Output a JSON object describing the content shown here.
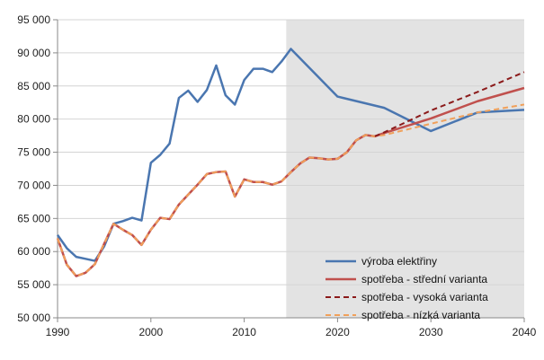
{
  "chart_data": {
    "type": "line",
    "title": "",
    "xlabel": "",
    "ylabel": "",
    "xlim": [
      1990,
      2040
    ],
    "ylim": [
      50000,
      95000
    ],
    "x_ticks": [
      1990,
      2000,
      2010,
      2020,
      2030,
      2040
    ],
    "x_tick_labels": [
      "1990",
      "2000",
      "2010",
      "2020",
      "2030",
      "2040"
    ],
    "y_ticks": [
      50000,
      55000,
      60000,
      65000,
      70000,
      75000,
      80000,
      85000,
      90000,
      95000
    ],
    "y_tick_labels": [
      "50 000",
      "55 000",
      "60 000",
      "65 000",
      "70 000",
      "75 000",
      "80 000",
      "85 000",
      "90 000",
      "95 000"
    ],
    "grid": "horizontal",
    "shaded_region": {
      "x_start": 2014.5,
      "x_end": 2040,
      "color": "#e3e3e3"
    },
    "legend_position": "bottom-right",
    "series": [
      {
        "name": "výroba elektřiny",
        "color": "#4a76b0",
        "dash": "solid",
        "points": [
          [
            1990,
            62500
          ],
          [
            1991,
            60500
          ],
          [
            1992,
            59200
          ],
          [
            1993,
            58900
          ],
          [
            1994,
            58600
          ],
          [
            1995,
            60800
          ],
          [
            1996,
            64200
          ],
          [
            1997,
            64600
          ],
          [
            1998,
            65100
          ],
          [
            1999,
            64700
          ],
          [
            2000,
            73400
          ],
          [
            2001,
            74600
          ],
          [
            2002,
            76300
          ],
          [
            2003,
            83200
          ],
          [
            2004,
            84300
          ],
          [
            2005,
            82600
          ],
          [
            2006,
            84400
          ],
          [
            2007,
            88100
          ],
          [
            2008,
            83600
          ],
          [
            2009,
            82200
          ],
          [
            2010,
            85900
          ],
          [
            2011,
            87600
          ],
          [
            2012,
            87600
          ],
          [
            2013,
            87100
          ],
          [
            2014,
            88700
          ],
          [
            2015,
            90600
          ],
          [
            2020,
            83400
          ],
          [
            2025,
            81700
          ],
          [
            2030,
            78200
          ],
          [
            2035,
            81000
          ],
          [
            2040,
            81400
          ]
        ]
      },
      {
        "name": "spotřeba - střední varianta",
        "color": "#c0504d",
        "dash": "solid",
        "points": [
          [
            1990,
            62000
          ],
          [
            1991,
            58000
          ],
          [
            1992,
            56300
          ],
          [
            1993,
            56800
          ],
          [
            1994,
            58100
          ],
          [
            1995,
            61200
          ],
          [
            1996,
            64200
          ],
          [
            1997,
            63300
          ],
          [
            1998,
            62500
          ],
          [
            1999,
            61000
          ],
          [
            2000,
            63300
          ],
          [
            2001,
            65100
          ],
          [
            2002,
            64900
          ],
          [
            2003,
            67100
          ],
          [
            2004,
            68600
          ],
          [
            2005,
            70100
          ],
          [
            2006,
            71700
          ],
          [
            2007,
            72000
          ],
          [
            2008,
            72100
          ],
          [
            2009,
            68300
          ],
          [
            2010,
            70900
          ],
          [
            2011,
            70500
          ],
          [
            2012,
            70500
          ],
          [
            2013,
            70100
          ],
          [
            2014,
            70600
          ],
          [
            2015,
            72000
          ],
          [
            2016,
            73300
          ],
          [
            2017,
            74200
          ],
          [
            2018,
            74100
          ],
          [
            2019,
            73900
          ],
          [
            2020,
            74000
          ],
          [
            2021,
            75000
          ],
          [
            2022,
            76800
          ],
          [
            2023,
            77600
          ],
          [
            2024,
            77400
          ],
          [
            2025,
            77900
          ],
          [
            2030,
            80100
          ],
          [
            2035,
            82700
          ],
          [
            2040,
            84700
          ]
        ]
      },
      {
        "name": "spotřeba - vysoká varianta",
        "color": "#8b1a1a",
        "dash": "dashed",
        "points": [
          [
            2024,
            77400
          ],
          [
            2025,
            78000
          ],
          [
            2030,
            81300
          ],
          [
            2035,
            84100
          ],
          [
            2040,
            87100
          ]
        ]
      },
      {
        "name": "spotřeba - nízká varianta",
        "color": "#f0a05a",
        "dash": "dashed",
        "points": [
          [
            1990,
            62000
          ],
          [
            1991,
            58000
          ],
          [
            1992,
            56300
          ],
          [
            1993,
            56800
          ],
          [
            1994,
            58100
          ],
          [
            1995,
            61200
          ],
          [
            1996,
            64200
          ],
          [
            1997,
            63300
          ],
          [
            1998,
            62500
          ],
          [
            1999,
            61000
          ],
          [
            2000,
            63300
          ],
          [
            2001,
            65100
          ],
          [
            2002,
            64900
          ],
          [
            2003,
            67100
          ],
          [
            2004,
            68600
          ],
          [
            2005,
            70100
          ],
          [
            2006,
            71700
          ],
          [
            2007,
            72000
          ],
          [
            2008,
            72100
          ],
          [
            2009,
            68300
          ],
          [
            2010,
            70900
          ],
          [
            2011,
            70500
          ],
          [
            2012,
            70500
          ],
          [
            2013,
            70100
          ],
          [
            2014,
            70600
          ],
          [
            2015,
            72000
          ],
          [
            2016,
            73300
          ],
          [
            2017,
            74200
          ],
          [
            2018,
            74100
          ],
          [
            2019,
            73900
          ],
          [
            2020,
            74000
          ],
          [
            2021,
            75000
          ],
          [
            2022,
            76800
          ],
          [
            2023,
            77600
          ],
          [
            2024,
            77400
          ],
          [
            2025,
            77600
          ],
          [
            2030,
            79300
          ],
          [
            2035,
            81000
          ],
          [
            2040,
            82200
          ]
        ]
      }
    ]
  }
}
